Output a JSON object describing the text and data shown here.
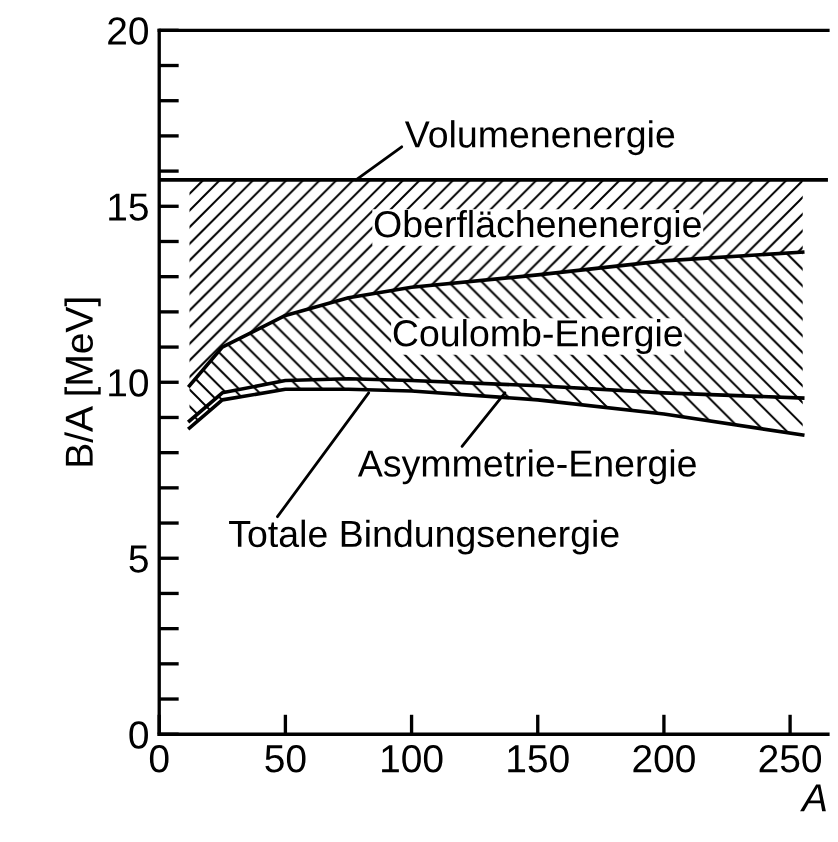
{
  "chart_data": {
    "type": "line",
    "xlabel": "A",
    "ylabel": "B/A [MeV]",
    "xlim": [
      0,
      265
    ],
    "xticks": [
      0,
      50,
      100,
      150,
      200,
      250
    ],
    "ylim": [
      0,
      20
    ],
    "yticks": [
      0,
      {
        "value": 1,
        "label": null
      },
      {
        "value": 2,
        "label": null
      },
      {
        "value": 3,
        "label": null
      },
      {
        "value": 4,
        "label": null
      },
      5,
      {
        "value": 6,
        "label": null
      },
      {
        "value": 7,
        "label": null
      },
      {
        "value": 8,
        "label": null
      },
      {
        "value": 9,
        "label": null
      },
      10,
      {
        "value": 11,
        "label": null
      },
      {
        "value": 12,
        "label": null
      },
      {
        "value": 13,
        "label": null
      },
      {
        "value": 14,
        "label": null
      },
      15,
      {
        "value": 16,
        "label": null
      },
      {
        "value": 17,
        "label": null
      },
      {
        "value": 18,
        "label": null
      },
      {
        "value": 19,
        "label": null
      },
      20
    ],
    "grid": false,
    "legend": false,
    "marker": "none",
    "line_style": "solid",
    "series": [
      {
        "color": "#000000",
        "x": [
          0,
          265
        ],
        "values": [
          15.75,
          15.75
        ]
      },
      {
        "color": "#000000",
        "x": [
          12,
          25,
          50,
          75,
          100,
          150,
          200,
          255
        ],
        "values": [
          9.9,
          11.0,
          11.9,
          12.4,
          12.7,
          13.05,
          13.45,
          13.7
        ],
        "lower": [
          9.9,
          11.0,
          11.9,
          12.4,
          12.7,
          13.05,
          13.45,
          13.7
        ],
        "upper": [
          15.75,
          15.75,
          15.75,
          15.75,
          15.75,
          15.75,
          15.75,
          15.75
        ]
      },
      {
        "color": "#000000",
        "x": [
          12,
          25,
          50,
          75,
          100,
          150,
          200,
          255
        ],
        "values": [
          8.9,
          9.7,
          10.05,
          10.1,
          10.05,
          9.9,
          9.7,
          9.55
        ],
        "lower": [
          8.9,
          9.7,
          10.05,
          10.1,
          10.05,
          9.9,
          9.7,
          9.55
        ],
        "upper": [
          9.9,
          11.0,
          11.9,
          12.4,
          12.7,
          13.05,
          13.45,
          13.7
        ]
      },
      {
        "color": "#000000",
        "x": [
          12,
          25,
          50,
          75,
          100,
          150,
          200,
          255
        ],
        "values": [
          8.7,
          9.5,
          9.8,
          9.8,
          9.75,
          9.5,
          9.1,
          8.5
        ],
        "lower": [
          8.7,
          9.5,
          9.8,
          9.8,
          9.75,
          9.5,
          9.1,
          8.5
        ],
        "upper": [
          8.9,
          9.7,
          10.05,
          10.1,
          10.05,
          9.9,
          9.7,
          9.55
        ]
      }
    ],
    "annotations": [
      {
        "text": "Volumenenergie",
        "x": 78,
        "y": 15.75
      },
      "Oberflächenenergie",
      "Coulomb-Energie",
      {
        "text": "Asymmetrie-Energie",
        "x": 137,
        "y": 9.7
      },
      {
        "text": "Totale Bindungsenergie",
        "x": 83,
        "y": 9.7
      }
    ]
  }
}
